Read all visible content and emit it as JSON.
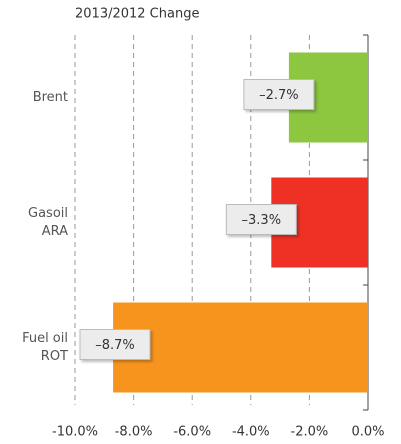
{
  "chart_data": {
    "type": "hbar",
    "title": "2013/2012 Change",
    "categories": [
      [
        "Brent"
      ],
      [
        "Gasoil",
        "ARA"
      ],
      [
        "Fuel oil",
        "ROT"
      ]
    ],
    "values": [
      -2.7,
      -3.3,
      -8.7
    ],
    "value_labels": [
      "–2.7%",
      "–3.3%",
      "–8.7%"
    ],
    "colors": [
      "#8dc63f",
      "#ee3124",
      "#f7941d"
    ],
    "xlim": [
      -10,
      0
    ],
    "xticks": [
      {
        "value": -10,
        "label": "-10.0%"
      },
      {
        "value": -8,
        "label": "-8.0%"
      },
      {
        "value": -6,
        "label": "-6.0%"
      },
      {
        "value": -4,
        "label": "-4.0%"
      },
      {
        "value": -2,
        "label": "-2.0%"
      },
      {
        "value": 0,
        "label": "0.0%"
      }
    ],
    "grid": true
  }
}
